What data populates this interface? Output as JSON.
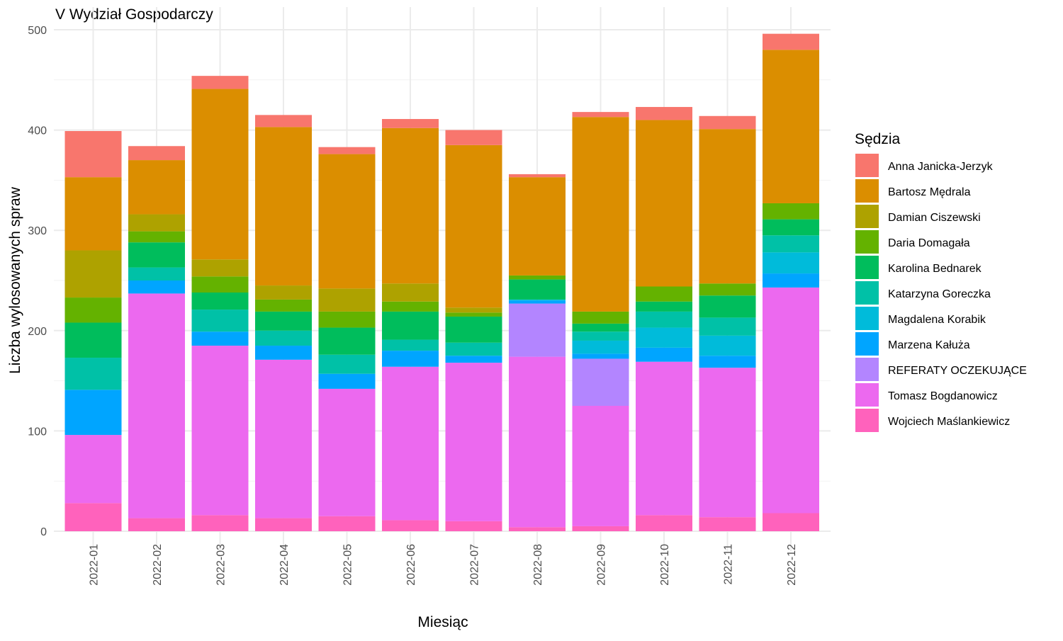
{
  "chart_data": {
    "type": "bar",
    "stacked": true,
    "title": "V Wydział Gospodarczy",
    "xlabel": "Miesiąc",
    "ylabel": "Liczba wylosowanych spraw",
    "ylim": [
      0,
      500
    ],
    "yticks": [
      0,
      100,
      200,
      300,
      400,
      500
    ],
    "grid": true,
    "legend_title": "Sędzia",
    "legend_position": "right",
    "categories": [
      "2022-01",
      "2022-02",
      "2022-03",
      "2022-04",
      "2022-05",
      "2022-06",
      "2022-07",
      "2022-08",
      "2022-09",
      "2022-10",
      "2022-11",
      "2022-12"
    ],
    "series": [
      {
        "name": "Wojciech Maślankiewicz",
        "color": "#FF62BC",
        "values": [
          28,
          13,
          16,
          13,
          15,
          11,
          10,
          4,
          5,
          16,
          14,
          18
        ]
      },
      {
        "name": "Tomasz Bogdanowicz",
        "color": "#EC69EF",
        "values": [
          68,
          224,
          169,
          158,
          127,
          153,
          158,
          170,
          120,
          153,
          149,
          225
        ]
      },
      {
        "name": "REFERATY OCZEKUJĄCE",
        "color": "#B385FF",
        "values": [
          0,
          0,
          0,
          0,
          0,
          0,
          0,
          53,
          47,
          0,
          0,
          0
        ]
      },
      {
        "name": "Marzena Kałuża",
        "color": "#00A5FF",
        "values": [
          45,
          13,
          14,
          14,
          15,
          16,
          7,
          3,
          5,
          14,
          12,
          14
        ]
      },
      {
        "name": "Magdalena Korabik",
        "color": "#00BBDA",
        "values": [
          0,
          0,
          0,
          0,
          0,
          0,
          0,
          1,
          13,
          20,
          20,
          21
        ]
      },
      {
        "name": "Katarzyna Goreczka",
        "color": "#00C1A7",
        "values": [
          32,
          13,
          22,
          15,
          19,
          11,
          13,
          0,
          9,
          16,
          18,
          17
        ]
      },
      {
        "name": "Karolina Bednarek",
        "color": "#00BD5C",
        "values": [
          35,
          25,
          17,
          19,
          27,
          28,
          26,
          20,
          8,
          10,
          22,
          16
        ]
      },
      {
        "name": "Daria Domagała",
        "color": "#64B200",
        "values": [
          25,
          11,
          16,
          12,
          16,
          10,
          4,
          4,
          12,
          15,
          12,
          16
        ]
      },
      {
        "name": "Damian Ciszewski",
        "color": "#AEA200",
        "values": [
          47,
          17,
          17,
          14,
          23,
          18,
          5,
          0,
          0,
          0,
          0,
          0
        ]
      },
      {
        "name": "Bartosz Mędrala",
        "color": "#DB8E00",
        "values": [
          73,
          54,
          170,
          158,
          134,
          155,
          162,
          98,
          194,
          166,
          154,
          153
        ]
      },
      {
        "name": "Anna Janicka-Jerzyk",
        "color": "#F8766D",
        "values": [
          46,
          14,
          13,
          12,
          7,
          9,
          15,
          3,
          5,
          13,
          13,
          16
        ]
      }
    ],
    "legend_order": [
      "Anna Janicka-Jerzyk",
      "Bartosz Mędrala",
      "Damian Ciszewski",
      "Daria Domagała",
      "Karolina Bednarek",
      "Katarzyna Goreczka",
      "Magdalena Korabik",
      "Marzena Kałuża",
      "REFERATY OCZEKUJĄCE",
      "Tomasz Bogdanowicz",
      "Wojciech Maślankiewicz"
    ]
  }
}
